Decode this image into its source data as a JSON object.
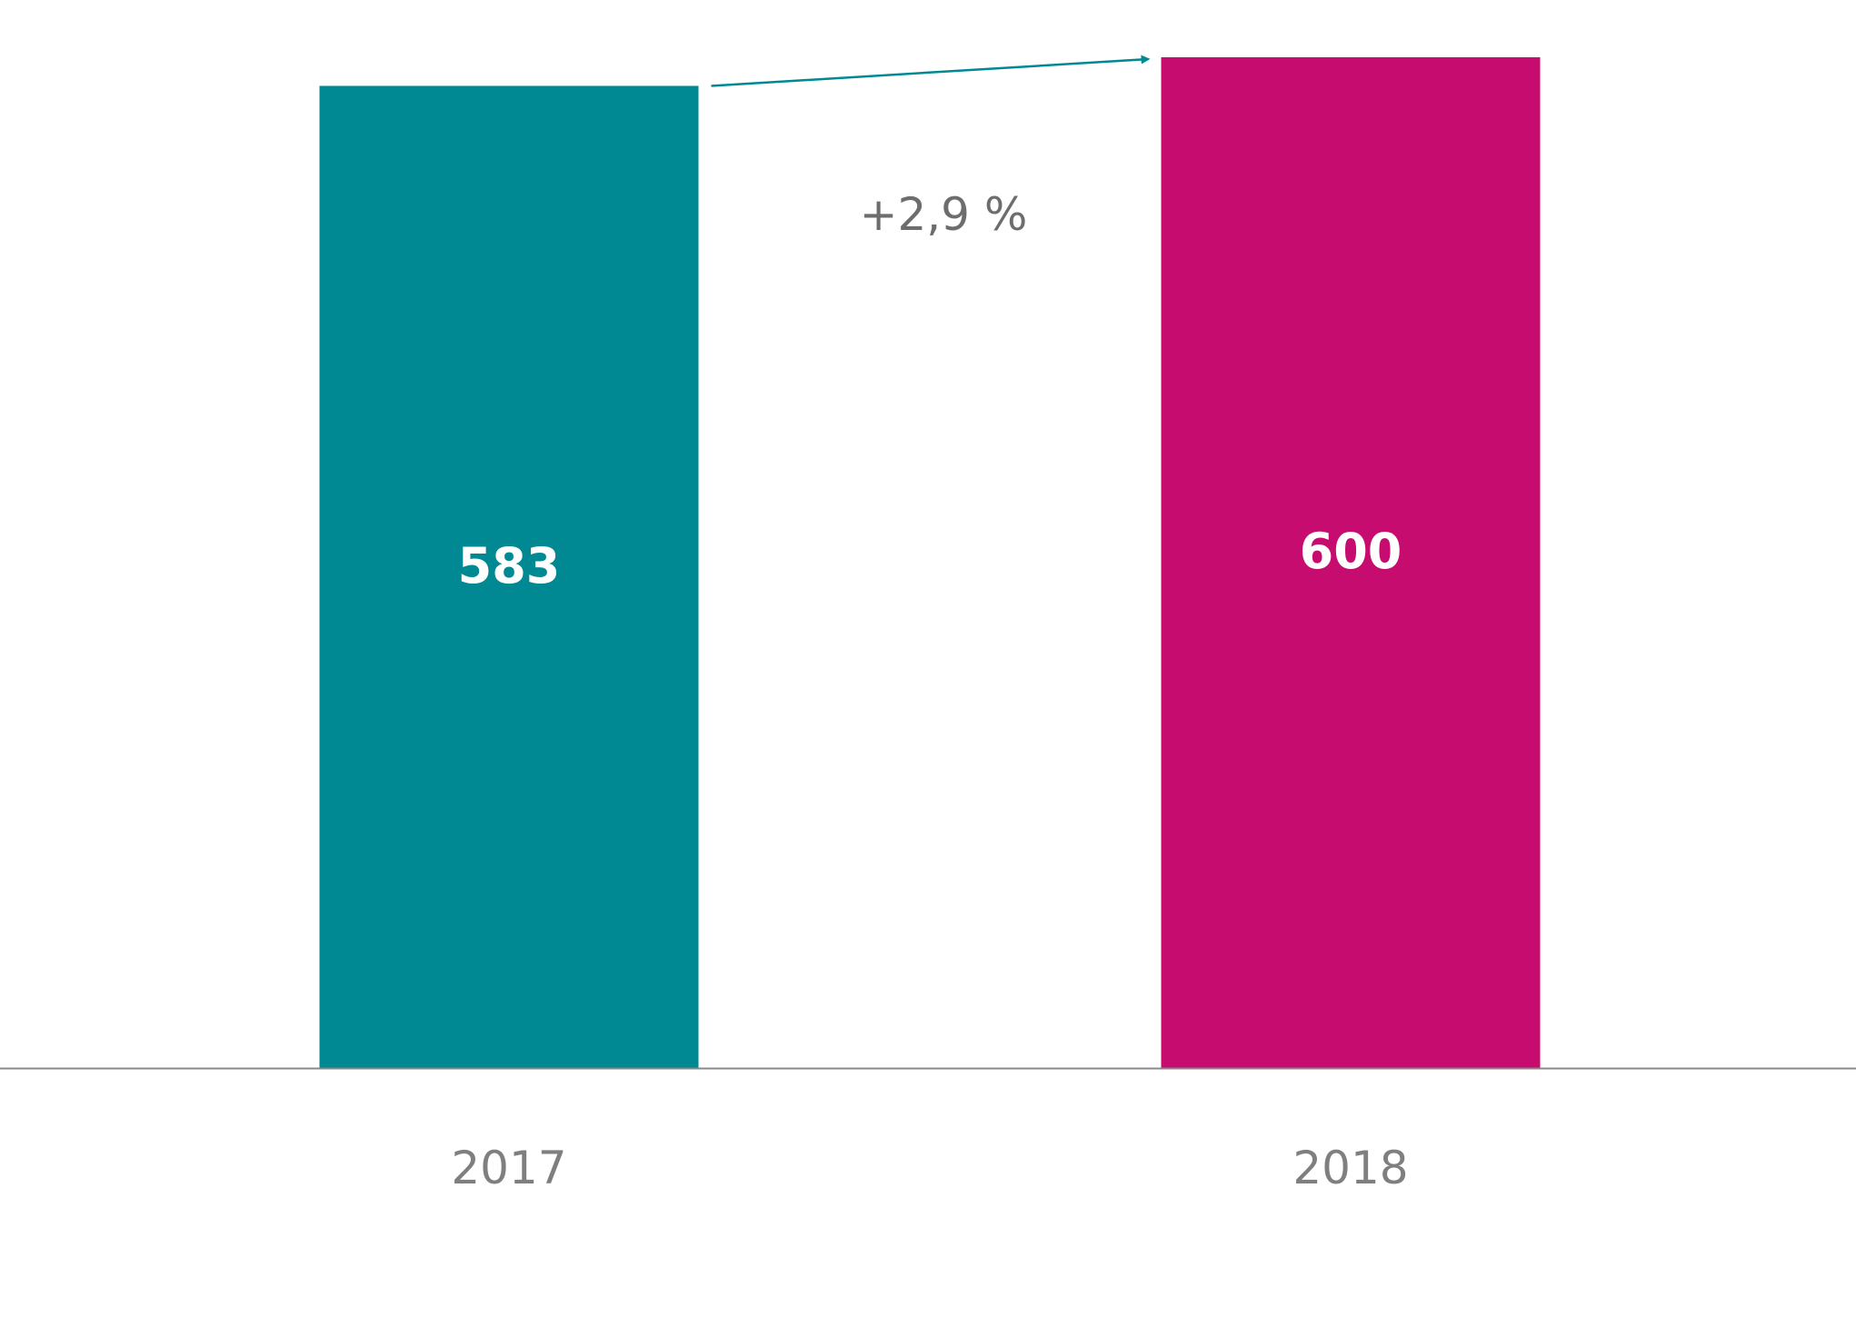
{
  "chart_data": {
    "type": "bar",
    "title": "",
    "xlabel": "",
    "ylabel": "",
    "categories": [
      "2017",
      "2018"
    ],
    "values": [
      583,
      600
    ],
    "data_labels": [
      "583",
      "600"
    ],
    "colors": [
      "#008893",
      "#c70c6f"
    ],
    "axis_color": "#888888",
    "tick_label_color": "#7f7f7f",
    "ylim": [
      0,
      600
    ],
    "grid": false,
    "legend": "none",
    "annotation": {
      "text": "+2,9 %",
      "from_category": "2017",
      "to_category": "2018",
      "arrow_color": "#008893"
    }
  }
}
